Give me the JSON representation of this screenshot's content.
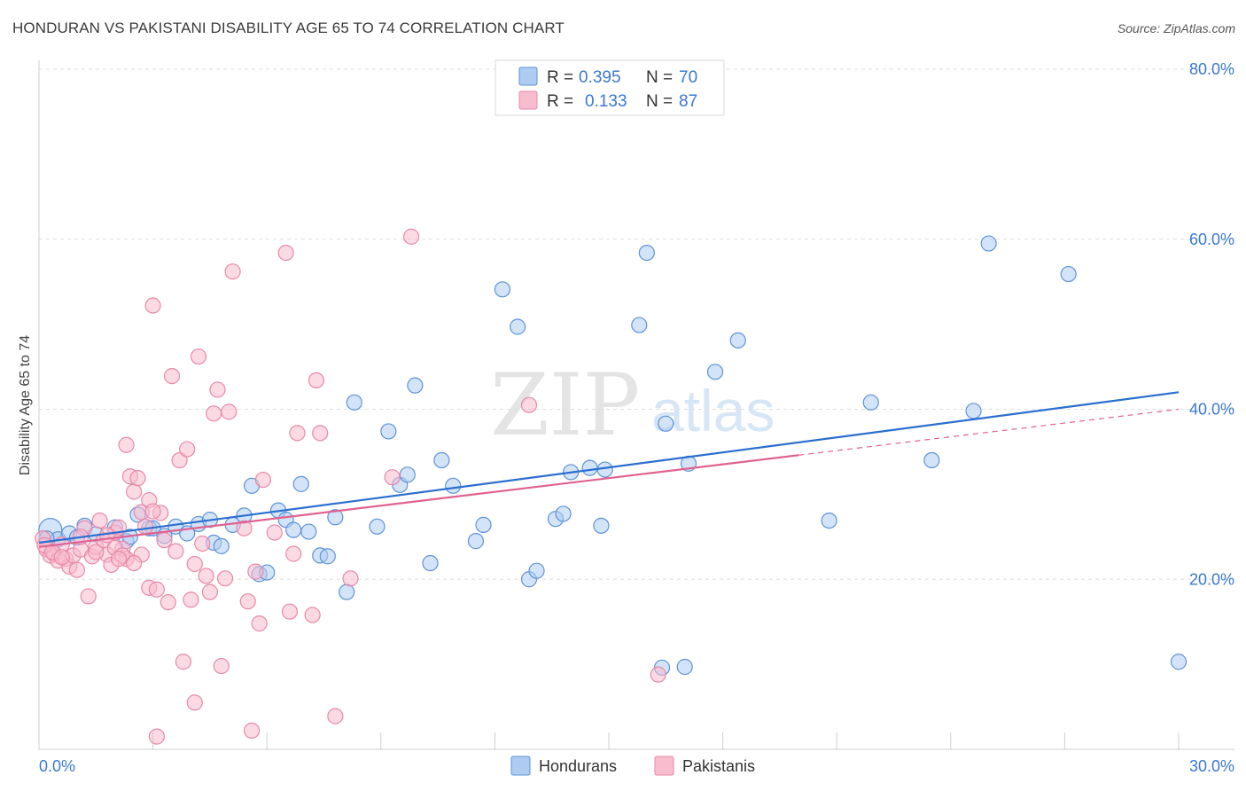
{
  "title": "HONDURAN VS PAKISTANI DISABILITY AGE 65 TO 74 CORRELATION CHART",
  "source": "Source: ZipAtlas.com",
  "watermark": {
    "zip": "ZIP",
    "atlas": "atlas"
  },
  "legend": {
    "row1": {
      "r_label": "R = ",
      "r_value": "0.395",
      "n_label": "N = ",
      "n_value": "70"
    },
    "row2": {
      "r_label": "R = ",
      "r_value": "0.133",
      "n_label": "N = ",
      "n_value": "87"
    }
  },
  "colors": {
    "hondurans_fill": "#aeccf2",
    "hondurans_stroke": "#5f93d8",
    "hondurans_line": "#2a6fd0",
    "pakistanis_fill": "#f7bccd",
    "pakistanis_stroke": "#e889a8",
    "pakistanis_line": "#e0628f",
    "tick_text": "#3a78d0",
    "grid": "#dddddd"
  },
  "chart_data": {
    "type": "scatter",
    "title": "HONDURAN VS PAKISTANI DISABILITY AGE 65 TO 74 CORRELATION CHART",
    "xlabel": "",
    "ylabel": "Disability Age 65 to 74",
    "xlim": [
      0,
      30
    ],
    "ylim": [
      0,
      80
    ],
    "x_ticks": [
      {
        "v": 0,
        "label": "0.0%"
      },
      {
        "v": 30,
        "label": "30.0%"
      }
    ],
    "y_ticks": [
      {
        "v": 20,
        "label": "20.0%"
      },
      {
        "v": 40,
        "label": "40.0%"
      },
      {
        "v": 60,
        "label": "60.0%"
      },
      {
        "v": 80,
        "label": "80.0%"
      }
    ],
    "grid": true,
    "legend_position": "top-center",
    "series": [
      {
        "name": "Hondurans",
        "r": 0.395,
        "n": 70,
        "trend": {
          "x0": 0,
          "y0": 24.3,
          "x1": 30,
          "y1": 42.0
        },
        "points": [
          [
            0.3,
            25.8
          ],
          [
            0.5,
            24.7
          ],
          [
            0.8,
            25.4
          ],
          [
            1.2,
            26.3
          ],
          [
            1.5,
            25.3
          ],
          [
            2.0,
            26.1
          ],
          [
            2.3,
            24.5
          ],
          [
            2.6,
            27.6
          ],
          [
            2.9,
            26.0
          ],
          [
            3.3,
            25.1
          ],
          [
            3.6,
            26.2
          ],
          [
            3.9,
            25.4
          ],
          [
            4.2,
            26.5
          ],
          [
            4.5,
            27.0
          ],
          [
            4.6,
            24.3
          ],
          [
            4.8,
            23.9
          ],
          [
            5.1,
            26.4
          ],
          [
            5.4,
            27.5
          ],
          [
            5.6,
            31.0
          ],
          [
            5.8,
            20.6
          ],
          [
            6.0,
            20.8
          ],
          [
            6.3,
            28.1
          ],
          [
            6.5,
            27.0
          ],
          [
            6.7,
            25.8
          ],
          [
            6.9,
            31.2
          ],
          [
            7.1,
            25.6
          ],
          [
            7.4,
            22.8
          ],
          [
            7.6,
            22.7
          ],
          [
            7.8,
            27.3
          ],
          [
            8.1,
            18.5
          ],
          [
            8.3,
            40.8
          ],
          [
            8.9,
            26.2
          ],
          [
            9.2,
            37.4
          ],
          [
            9.5,
            31.1
          ],
          [
            9.7,
            32.3
          ],
          [
            9.9,
            42.8
          ],
          [
            10.3,
            21.9
          ],
          [
            10.6,
            34.0
          ],
          [
            10.9,
            31.0
          ],
          [
            11.5,
            24.5
          ],
          [
            11.7,
            26.4
          ],
          [
            12.2,
            54.1
          ],
          [
            12.6,
            49.7
          ],
          [
            12.9,
            20.0
          ],
          [
            13.1,
            21.0
          ],
          [
            13.6,
            27.1
          ],
          [
            13.8,
            27.7
          ],
          [
            14.0,
            32.6
          ],
          [
            14.5,
            33.1
          ],
          [
            14.8,
            26.3
          ],
          [
            14.9,
            32.9
          ],
          [
            15.8,
            49.9
          ],
          [
            16.0,
            58.4
          ],
          [
            16.4,
            9.6
          ],
          [
            16.5,
            38.3
          ],
          [
            17.0,
            9.7
          ],
          [
            17.1,
            33.6
          ],
          [
            17.8,
            44.4
          ],
          [
            18.4,
            48.1
          ],
          [
            20.8,
            26.9
          ],
          [
            21.9,
            40.8
          ],
          [
            23.5,
            34.0
          ],
          [
            24.6,
            39.8
          ],
          [
            25.0,
            59.5
          ],
          [
            27.1,
            55.9
          ],
          [
            30.0,
            10.3
          ],
          [
            0.2,
            24.8
          ],
          [
            1.0,
            24.9
          ],
          [
            3.0,
            26.0
          ],
          [
            2.4,
            25.0
          ]
        ]
      },
      {
        "name": "Pakistanis",
        "r": 0.133,
        "n": 87,
        "trend": {
          "x0": 0,
          "y0": 23.8,
          "x1": 20.0,
          "y1": 34.6,
          "dashed_to": {
            "x": 30,
            "y": 40.0
          }
        },
        "points": [
          [
            0.1,
            24.8
          ],
          [
            0.2,
            23.5
          ],
          [
            0.3,
            22.8
          ],
          [
            0.4,
            23.0
          ],
          [
            0.5,
            22.2
          ],
          [
            0.6,
            24.1
          ],
          [
            0.7,
            22.4
          ],
          [
            0.8,
            21.5
          ],
          [
            0.9,
            22.8
          ],
          [
            1.0,
            21.1
          ],
          [
            1.1,
            23.5
          ],
          [
            1.2,
            26.0
          ],
          [
            1.3,
            18.0
          ],
          [
            1.4,
            22.7
          ],
          [
            1.5,
            23.8
          ],
          [
            1.6,
            26.9
          ],
          [
            1.7,
            24.6
          ],
          [
            1.8,
            22.9
          ],
          [
            1.9,
            21.7
          ],
          [
            2.0,
            25.5
          ],
          [
            2.1,
            26.1
          ],
          [
            2.2,
            23.6
          ],
          [
            2.3,
            22.4
          ],
          [
            2.3,
            35.8
          ],
          [
            2.4,
            32.1
          ],
          [
            2.5,
            30.3
          ],
          [
            2.6,
            31.9
          ],
          [
            2.7,
            27.9
          ],
          [
            2.8,
            26.2
          ],
          [
            2.9,
            19.0
          ],
          [
            2.9,
            29.3
          ],
          [
            3.0,
            52.2
          ],
          [
            3.1,
            18.8
          ],
          [
            3.2,
            27.8
          ],
          [
            3.3,
            24.6
          ],
          [
            3.4,
            17.3
          ],
          [
            3.5,
            43.9
          ],
          [
            3.6,
            23.3
          ],
          [
            3.7,
            34.0
          ],
          [
            3.8,
            10.3
          ],
          [
            3.9,
            35.3
          ],
          [
            4.0,
            17.6
          ],
          [
            4.1,
            5.5
          ],
          [
            4.1,
            21.8
          ],
          [
            4.2,
            46.2
          ],
          [
            4.3,
            24.2
          ],
          [
            4.5,
            18.5
          ],
          [
            4.6,
            39.5
          ],
          [
            4.7,
            42.3
          ],
          [
            4.8,
            9.8
          ],
          [
            4.9,
            20.1
          ],
          [
            5.0,
            39.7
          ],
          [
            5.1,
            56.2
          ],
          [
            5.4,
            26.0
          ],
          [
            5.5,
            17.4
          ],
          [
            5.6,
            2.2
          ],
          [
            5.7,
            20.9
          ],
          [
            5.8,
            14.8
          ],
          [
            6.2,
            25.5
          ],
          [
            6.5,
            58.4
          ],
          [
            6.6,
            16.2
          ],
          [
            6.7,
            23.0
          ],
          [
            6.8,
            37.2
          ],
          [
            7.2,
            15.8
          ],
          [
            7.3,
            43.4
          ],
          [
            7.4,
            37.2
          ],
          [
            7.8,
            3.9
          ],
          [
            8.2,
            20.1
          ],
          [
            9.3,
            32.0
          ],
          [
            9.8,
            60.3
          ],
          [
            12.9,
            40.5
          ],
          [
            16.3,
            8.8
          ],
          [
            5.9,
            31.7
          ],
          [
            3.1,
            1.5
          ],
          [
            0.15,
            24.0
          ],
          [
            0.35,
            23.2
          ],
          [
            1.5,
            23.2
          ],
          [
            2.0,
            23.7
          ],
          [
            2.2,
            22.8
          ],
          [
            2.7,
            22.9
          ],
          [
            1.1,
            25.0
          ],
          [
            0.6,
            22.6
          ],
          [
            1.8,
            25.2
          ],
          [
            4.4,
            20.4
          ],
          [
            3.0,
            28.0
          ],
          [
            2.5,
            21.9
          ],
          [
            2.1,
            22.4
          ]
        ]
      }
    ]
  },
  "bottom_legend": {
    "hondurans": "Hondurans",
    "pakistanis": "Pakistanis"
  }
}
